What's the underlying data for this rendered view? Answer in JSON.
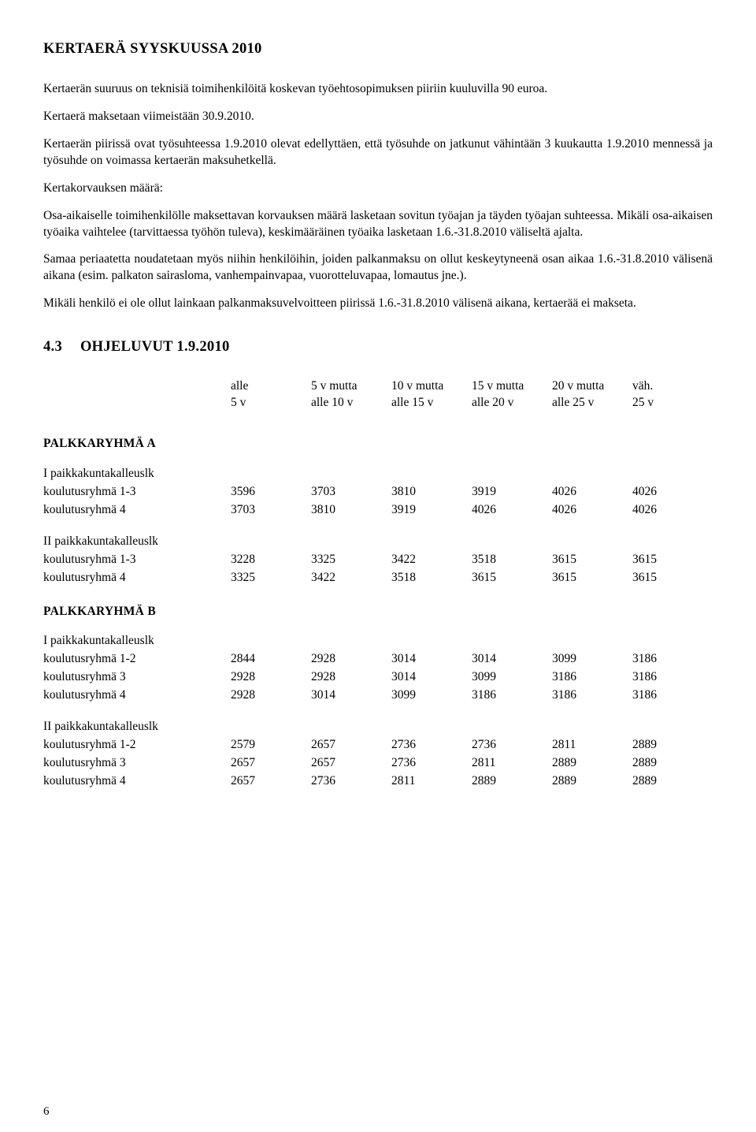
{
  "page_number": "6",
  "heading1": "KERTAERÄ SYYSKUUSSA 2010",
  "p1": "Kertaerän suuruus on teknisiä toimihenkilöitä koskevan työehtosopimuksen piiriin kuuluvilla 90 euroa.",
  "p2": "Kertaerä maksetaan viimeistään 30.9.2010.",
  "p3": "Kertaerän piirissä ovat työsuhteessa 1.9.2010 olevat edellyttäen, että työsuhde on jatkunut vähintään 3 kuukautta 1.9.2010 mennessä ja työsuhde on voimassa kertaerän maksuhetkellä.",
  "p4": "Kertakorvauksen määrä:",
  "p5": "Osa-aikaiselle toimihenkilölle maksettavan korvauksen määrä lasketaan sovitun työajan ja täyden työajan suhteessa. Mikäli osa-aikaisen työaika vaihtelee (tarvittaessa työhön tuleva), keskimääräinen työaika lasketaan 1.6.-31.8.2010 väliseltä ajalta.",
  "p6": "Samaa periaatetta noudatetaan myös niihin henkilöihin, joiden palkanmaksu on ollut keskeytyneenä osan aikaa 1.6.-31.8.2010 välisenä aikana (esim. palkaton sairasloma, vanhempainvapaa, vuorotteluvapaa, lomautus jne.).",
  "p7": "Mikäli henkilö ei ole ollut lainkaan palkanmaksuvelvoitteen piirissä 1.6.-31.8.2010 välisenä aikana, kertaerää ei makseta.",
  "section_num": "4.3",
  "section_title": "OHJELUVUT 1.9.2010",
  "columns": {
    "c1a": "alle",
    "c1b": "5 v",
    "c2a": "5 v mutta",
    "c2b": "alle 10 v",
    "c3a": "10 v mutta",
    "c3b": "alle 15 v",
    "c4a": "15 v mutta",
    "c4b": "alle 20 v",
    "c5a": "20 v mutta",
    "c5b": "alle 25 v",
    "c6a": "väh.",
    "c6b": "25 v"
  },
  "groupA": {
    "title": "PALKKARYHMÄ A",
    "sub1": {
      "title": "I paikkakuntakalleuslk",
      "rows": [
        {
          "label": "koulutusryhmä 1-3",
          "v": [
            "3596",
            "3703",
            "3810",
            "3919",
            "4026",
            "4026"
          ]
        },
        {
          "label": "koulutusryhmä 4",
          "v": [
            "3703",
            "3810",
            "3919",
            "4026",
            "4026",
            "4026"
          ]
        }
      ]
    },
    "sub2": {
      "title": "II paikkakuntakalleuslk",
      "rows": [
        {
          "label": "koulutusryhmä 1-3",
          "v": [
            "3228",
            "3325",
            "3422",
            "3518",
            "3615",
            "3615"
          ]
        },
        {
          "label": "koulutusryhmä 4",
          "v": [
            "3325",
            "3422",
            "3518",
            "3615",
            "3615",
            "3615"
          ]
        }
      ]
    }
  },
  "groupB": {
    "title": "PALKKARYHMÄ B",
    "sub1": {
      "title": "I paikkakuntakalleuslk",
      "rows": [
        {
          "label": "koulutusryhmä 1-2",
          "v": [
            "2844",
            "2928",
            "3014",
            "3014",
            "3099",
            "3186"
          ]
        },
        {
          "label": "koulutusryhmä 3",
          "v": [
            "2928",
            "2928",
            "3014",
            "3099",
            "3186",
            "3186"
          ]
        },
        {
          "label": "koulutusryhmä 4",
          "v": [
            "2928",
            "3014",
            "3099",
            "3186",
            "3186",
            "3186"
          ]
        }
      ]
    },
    "sub2": {
      "title": "II paikkakuntakalleuslk",
      "rows": [
        {
          "label": "koulutusryhmä 1-2",
          "v": [
            "2579",
            "2657",
            "2736",
            "2736",
            "2811",
            "2889"
          ]
        },
        {
          "label": "koulutusryhmä 3",
          "v": [
            "2657",
            "2657",
            "2736",
            "2811",
            "2889",
            "2889"
          ]
        },
        {
          "label": "koulutusryhmä 4",
          "v": [
            "2657",
            "2736",
            "2811",
            "2889",
            "2889",
            "2889"
          ]
        }
      ]
    }
  }
}
